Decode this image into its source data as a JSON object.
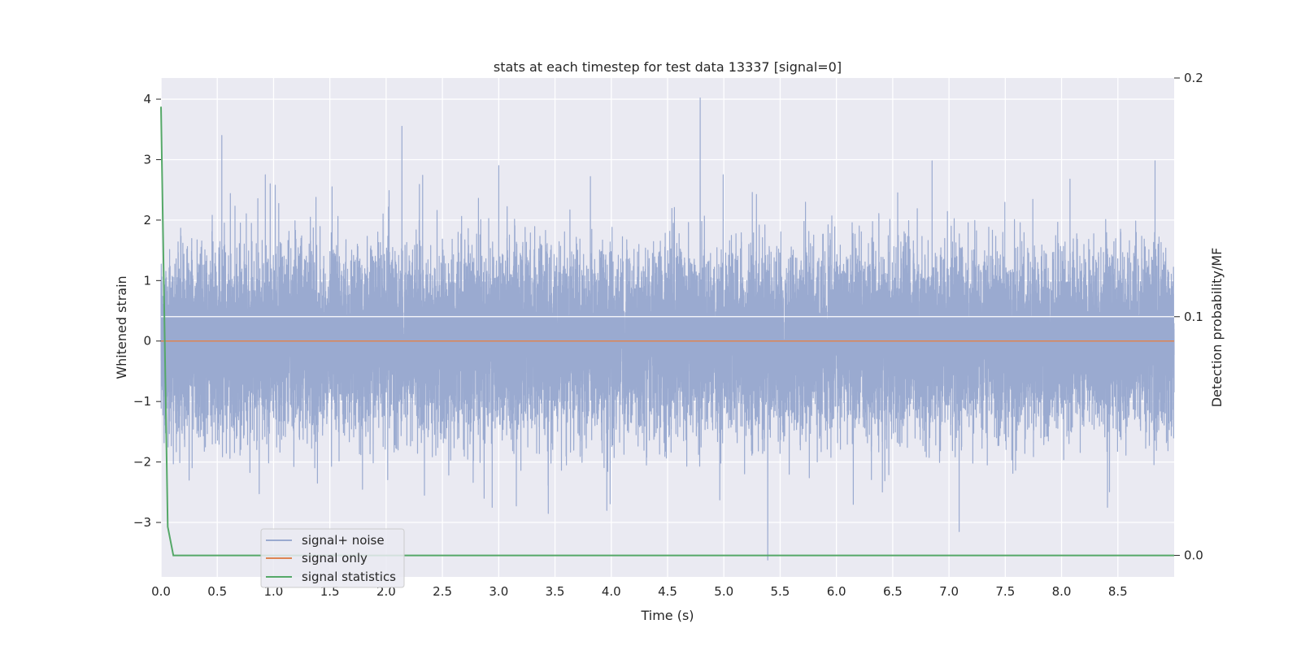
{
  "chart_data": {
    "type": "line",
    "title": "stats at each timestep for test data 13337 [signal=0]",
    "xlabel": "Time (s)",
    "ylabel": "Whitened strain",
    "y2label": "Detection probability/MF",
    "xlim": [
      0.0,
      9.0
    ],
    "ylim": [
      -3.9,
      4.35
    ],
    "y2lim": [
      -0.009,
      0.2
    ],
    "xticks": [
      "0.0",
      "0.5",
      "1.0",
      "1.5",
      "2.0",
      "2.5",
      "3.0",
      "3.5",
      "4.0",
      "4.5",
      "5.0",
      "5.5",
      "6.0",
      "6.5",
      "7.0",
      "7.5",
      "8.0",
      "8.5"
    ],
    "yticks": [
      "4",
      "3",
      "2",
      "1",
      "0",
      "−1",
      "−2",
      "−3"
    ],
    "y2ticks": [
      "0.2",
      "0.1",
      "0.0"
    ],
    "grid": true,
    "legend_position": "lower-left",
    "series": [
      {
        "name": "signal+ noise",
        "color": "#9aaad0",
        "description_stats": {
          "n_samples": 18000,
          "x_start": 0.0,
          "x_end": 9.0,
          "std": 0.72,
          "max": 4.02,
          "max_at": 4.79,
          "min": -3.62,
          "min_at": 5.39
        },
        "notable_peaks": [
          {
            "x": 0.54,
            "y": 3.4
          },
          {
            "x": 2.14,
            "y": 3.55
          },
          {
            "x": 4.79,
            "y": 4.02
          },
          {
            "x": 6.85,
            "y": 2.98
          },
          {
            "x": 8.83,
            "y": 2.98
          },
          {
            "x": 3.0,
            "y": 2.9
          },
          {
            "x": 0.97,
            "y": 2.6
          },
          {
            "x": 1.52,
            "y": 2.55
          },
          {
            "x": 3.44,
            "y": -2.85
          },
          {
            "x": 3.96,
            "y": -2.8
          },
          {
            "x": 5.39,
            "y": -3.62
          },
          {
            "x": 7.09,
            "y": -3.15
          },
          {
            "x": 0.25,
            "y": -2.3
          },
          {
            "x": 1.39,
            "y": -2.35
          },
          {
            "x": 1.79,
            "y": -2.45
          },
          {
            "x": 2.34,
            "y": -2.55
          },
          {
            "x": 2.87,
            "y": -2.6
          },
          {
            "x": 6.15,
            "y": -2.7
          }
        ]
      },
      {
        "name": "signal only",
        "color": "#dd8452",
        "x": [
          0.0,
          9.0
        ],
        "y": [
          0.0,
          0.0
        ]
      },
      {
        "name": "signal statistics",
        "color": "#55a868",
        "axis": "right",
        "x": [
          0.0,
          0.06,
          0.11,
          0.2,
          9.0
        ],
        "y": [
          0.188,
          0.012,
          0.0,
          0.0,
          0.0
        ]
      }
    ]
  }
}
